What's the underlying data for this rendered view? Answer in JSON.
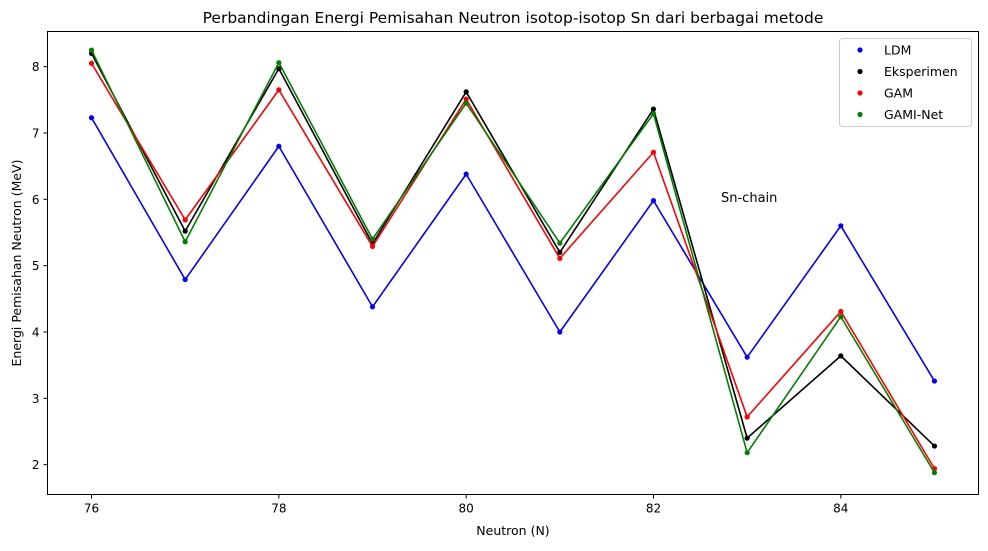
{
  "chart_data": {
    "type": "line",
    "title": "Perbandingan Energi Pemisahan Neutron isotop-isotop Sn dari berbagai metode",
    "xlabel": "Neutron (N)",
    "ylabel": "Energi Pemisahan Neutron (MeV)",
    "annotation": "Sn-chain",
    "x": [
      76,
      77,
      78,
      79,
      80,
      81,
      82,
      83,
      84,
      85
    ],
    "xlim": [
      75.53,
      85.47
    ],
    "ylim": [
      1.55,
      8.53
    ],
    "xticks": [
      76,
      78,
      80,
      82,
      84
    ],
    "yticks": [
      2,
      3,
      4,
      5,
      6,
      7,
      8
    ],
    "grid": false,
    "legend_position": "top-right",
    "series": [
      {
        "name": "LDM",
        "color": "#0000ff",
        "values": [
          7.23,
          4.79,
          6.8,
          4.38,
          6.38,
          4.0,
          5.98,
          3.62,
          5.6,
          3.26
        ]
      },
      {
        "name": "Eksperimen",
        "color": "#000000",
        "values": [
          8.2,
          5.52,
          7.97,
          5.33,
          7.62,
          5.2,
          7.36,
          2.4,
          3.64,
          2.28
        ]
      },
      {
        "name": "GAM",
        "color": "#ff0000",
        "values": [
          8.05,
          5.69,
          7.65,
          5.29,
          7.51,
          5.11,
          6.71,
          2.72,
          4.31,
          1.94
        ]
      },
      {
        "name": "GAMI-Net",
        "color": "#008000",
        "values": [
          8.25,
          5.36,
          8.06,
          5.4,
          7.45,
          5.34,
          7.29,
          2.18,
          4.23,
          1.88
        ]
      }
    ]
  }
}
